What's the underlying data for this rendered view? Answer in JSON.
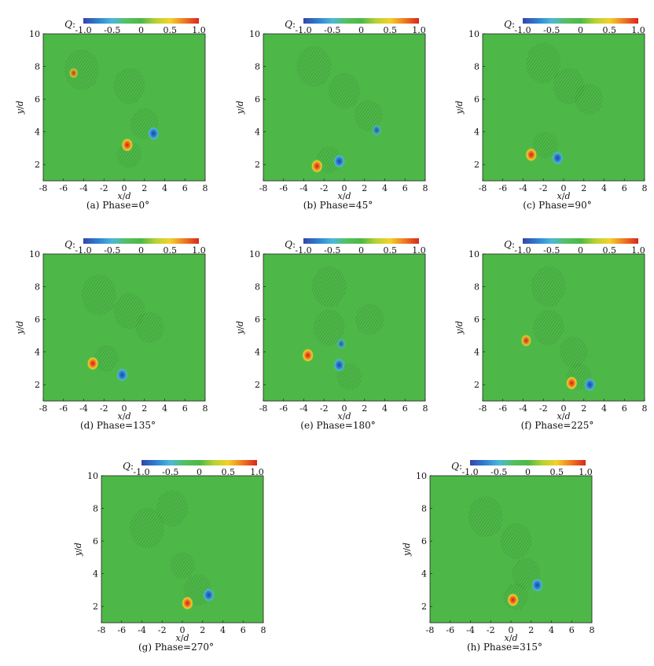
{
  "colors": {
    "field_green": "#4db848",
    "colormap": [
      "#3545a8",
      "#2f7fd0",
      "#4bb8d8",
      "#55c060",
      "#4db848",
      "#b6d232",
      "#f3d12a",
      "#f07a22",
      "#d8271f"
    ]
  },
  "chart_data": [
    {
      "type": "heatmap",
      "caption": "(a) Phase=0°",
      "colorbar": {
        "label": "Q",
        "range": [
          -1.0,
          1.0
        ],
        "ticks": [
          "-1.0",
          "-0.5",
          "0",
          "0.5",
          "1.0"
        ]
      },
      "xlabel": "x/d",
      "ylabel": "y/d",
      "xlim": [
        -8,
        8
      ],
      "ylim": [
        1,
        10
      ],
      "xticks": [
        "-8",
        "-6",
        "-4",
        "-2",
        "0",
        "2",
        "4",
        "6",
        "8"
      ],
      "yticks": [
        "2",
        "4",
        "6",
        "8",
        "10"
      ],
      "vortices": [
        {
          "x": 0.3,
          "y": 3.2,
          "q": 1.0
        },
        {
          "x": 2.9,
          "y": 3.9,
          "q": -1.0
        },
        {
          "x": -5.0,
          "y": 7.6,
          "q": 0.5
        }
      ],
      "wake_regions": [
        {
          "x": -4.2,
          "y": 7.8
        },
        {
          "x": 0.5,
          "y": 6.8
        },
        {
          "x": 2.0,
          "y": 4.5
        },
        {
          "x": 0.5,
          "y": 2.6
        }
      ]
    },
    {
      "type": "heatmap",
      "caption": "(b) Phase=45°",
      "colorbar": {
        "label": "Q",
        "range": [
          -1.0,
          1.0
        ],
        "ticks": [
          "-1.0",
          "-0.5",
          "0",
          "0.5",
          "1.0"
        ]
      },
      "xlabel": "x/d",
      "ylabel": "y/d",
      "xlim": [
        -8,
        8
      ],
      "ylim": [
        1,
        10
      ],
      "xticks": [
        "-8",
        "-6",
        "-4",
        "-2",
        "0",
        "2",
        "4",
        "6",
        "8"
      ],
      "yticks": [
        "2",
        "4",
        "6",
        "8",
        "10"
      ],
      "vortices": [
        {
          "x": -2.7,
          "y": 1.9,
          "q": 1.0
        },
        {
          "x": -0.5,
          "y": 2.2,
          "q": -1.0
        },
        {
          "x": 3.2,
          "y": 4.1,
          "q": -0.6
        }
      ],
      "wake_regions": [
        {
          "x": -3.0,
          "y": 8.0
        },
        {
          "x": 0.0,
          "y": 6.5
        },
        {
          "x": 2.4,
          "y": 5.0
        },
        {
          "x": -1.5,
          "y": 2.3
        }
      ]
    },
    {
      "type": "heatmap",
      "caption": "(c) Phase=90°",
      "colorbar": {
        "label": "Q",
        "range": [
          -1.0,
          1.0
        ],
        "ticks": [
          "-1.0",
          "-0.5",
          "0",
          "0.5",
          "1.0"
        ]
      },
      "xlabel": "x/d",
      "ylabel": "y/d",
      "xlim": [
        -8,
        8
      ],
      "ylim": [
        1,
        10
      ],
      "xticks": [
        "-8",
        "-6",
        "-4",
        "-2",
        "0",
        "2",
        "4",
        "6",
        "8"
      ],
      "yticks": [
        "2",
        "4",
        "6",
        "8",
        "10"
      ],
      "vortices": [
        {
          "x": -3.2,
          "y": 2.6,
          "q": 1.0
        },
        {
          "x": -0.6,
          "y": 2.4,
          "q": -1.0
        }
      ],
      "wake_regions": [
        {
          "x": -2.0,
          "y": 8.2
        },
        {
          "x": 0.5,
          "y": 6.8
        },
        {
          "x": 2.5,
          "y": 6.0
        },
        {
          "x": -1.8,
          "y": 3.2
        }
      ]
    },
    {
      "type": "heatmap",
      "caption": "(d) Phase=135°",
      "colorbar": {
        "label": "Q",
        "range": [
          -1.0,
          1.0
        ],
        "ticks": [
          "-1.0",
          "-0.5",
          "0",
          "0.5",
          "1.0"
        ]
      },
      "xlabel": "x/d",
      "ylabel": "y/d",
      "xlim": [
        -8,
        8
      ],
      "ylim": [
        1,
        10
      ],
      "xticks": [
        "-8",
        "-6",
        "-4",
        "-2",
        "0",
        "2",
        "4",
        "6",
        "8"
      ],
      "yticks": [
        "2",
        "4",
        "6",
        "8",
        "10"
      ],
      "vortices": [
        {
          "x": -3.1,
          "y": 3.3,
          "q": 1.0
        },
        {
          "x": -0.2,
          "y": 2.6,
          "q": -1.0
        }
      ],
      "wake_regions": [
        {
          "x": -2.5,
          "y": 7.5
        },
        {
          "x": 0.5,
          "y": 6.5
        },
        {
          "x": 2.5,
          "y": 5.5
        },
        {
          "x": -1.8,
          "y": 3.6
        }
      ]
    },
    {
      "type": "heatmap",
      "caption": "(e) Phase=180°",
      "colorbar": {
        "label": "Q",
        "range": [
          -1.0,
          1.0
        ],
        "ticks": [
          "-1.0",
          "-0.5",
          "0",
          "0.5",
          "1.0"
        ]
      },
      "xlabel": "x/d",
      "ylabel": "y/d",
      "xlim": [
        -8,
        8
      ],
      "ylim": [
        1,
        10
      ],
      "xticks": [
        "-8",
        "-6",
        "-4",
        "-2",
        "0",
        "2",
        "4",
        "6",
        "8"
      ],
      "yticks": [
        "2",
        "4",
        "6",
        "8",
        "10"
      ],
      "vortices": [
        {
          "x": -3.6,
          "y": 3.8,
          "q": 1.0
        },
        {
          "x": -0.5,
          "y": 3.2,
          "q": -1.0
        },
        {
          "x": -0.3,
          "y": 4.5,
          "q": -0.5
        }
      ],
      "wake_regions": [
        {
          "x": -1.5,
          "y": 8.0
        },
        {
          "x": -1.5,
          "y": 5.5
        },
        {
          "x": 2.5,
          "y": 6.0
        },
        {
          "x": 0.5,
          "y": 2.5
        }
      ]
    },
    {
      "type": "heatmap",
      "caption": "(f) Phase=225°",
      "colorbar": {
        "label": "Q",
        "range": [
          -1.0,
          1.0
        ],
        "ticks": [
          "-1.0",
          "-0.5",
          "0",
          "0.5",
          "1.0"
        ]
      },
      "xlabel": "x/d",
      "ylabel": "y/d",
      "xlim": [
        -8,
        8
      ],
      "ylim": [
        1,
        10
      ],
      "xticks": [
        "-8",
        "-6",
        "-4",
        "-2",
        "0",
        "2",
        "4",
        "6",
        "8"
      ],
      "yticks": [
        "2",
        "4",
        "6",
        "8",
        "10"
      ],
      "vortices": [
        {
          "x": -3.7,
          "y": 4.7,
          "q": 0.8
        },
        {
          "x": 0.8,
          "y": 2.1,
          "q": 1.0
        },
        {
          "x": 2.6,
          "y": 2.0,
          "q": -1.0
        }
      ],
      "wake_regions": [
        {
          "x": -1.5,
          "y": 8.0
        },
        {
          "x": -1.5,
          "y": 5.5
        },
        {
          "x": 1.0,
          "y": 4.0
        },
        {
          "x": 1.5,
          "y": 2.5
        }
      ]
    },
    {
      "type": "heatmap",
      "caption": "(g) Phase=270°",
      "colorbar": {
        "label": "Q",
        "range": [
          -1.0,
          1.0
        ],
        "ticks": [
          "-1.0",
          "-0.5",
          "0",
          "0.5",
          "1.0"
        ]
      },
      "xlabel": "x/d",
      "ylabel": "y/d",
      "xlim": [
        -8,
        8
      ],
      "ylim": [
        1,
        10
      ],
      "xticks": [
        "-8",
        "-6",
        "-4",
        "-2",
        "0",
        "2",
        "4",
        "6",
        "8"
      ],
      "yticks": [
        "2",
        "4",
        "6",
        "8",
        "10"
      ],
      "vortices": [
        {
          "x": 0.5,
          "y": 2.2,
          "q": 1.0
        },
        {
          "x": 2.6,
          "y": 2.7,
          "q": -1.0
        }
      ],
      "wake_regions": [
        {
          "x": -3.5,
          "y": 6.8
        },
        {
          "x": -1.0,
          "y": 8.0
        },
        {
          "x": 1.5,
          "y": 3.0
        },
        {
          "x": 0.0,
          "y": 4.5
        }
      ]
    },
    {
      "type": "heatmap",
      "caption": "(h) Phase=315°",
      "colorbar": {
        "label": "Q",
        "range": [
          -1.0,
          1.0
        ],
        "ticks": [
          "-1.0",
          "-0.5",
          "0",
          "0.5",
          "1.0"
        ]
      },
      "xlabel": "x/d",
      "ylabel": "y/d",
      "xlim": [
        -8,
        8
      ],
      "ylim": [
        1,
        10
      ],
      "xticks": [
        "-8",
        "-6",
        "-4",
        "-2",
        "0",
        "2",
        "4",
        "6",
        "8"
      ],
      "yticks": [
        "2",
        "4",
        "6",
        "8",
        "10"
      ],
      "vortices": [
        {
          "x": 0.2,
          "y": 2.4,
          "q": 1.0
        },
        {
          "x": 2.6,
          "y": 3.3,
          "q": -1.0
        }
      ],
      "wake_regions": [
        {
          "x": -2.5,
          "y": 7.5
        },
        {
          "x": 0.5,
          "y": 6.0
        },
        {
          "x": 1.5,
          "y": 4.0
        },
        {
          "x": 0.5,
          "y": 2.6
        }
      ]
    }
  ]
}
